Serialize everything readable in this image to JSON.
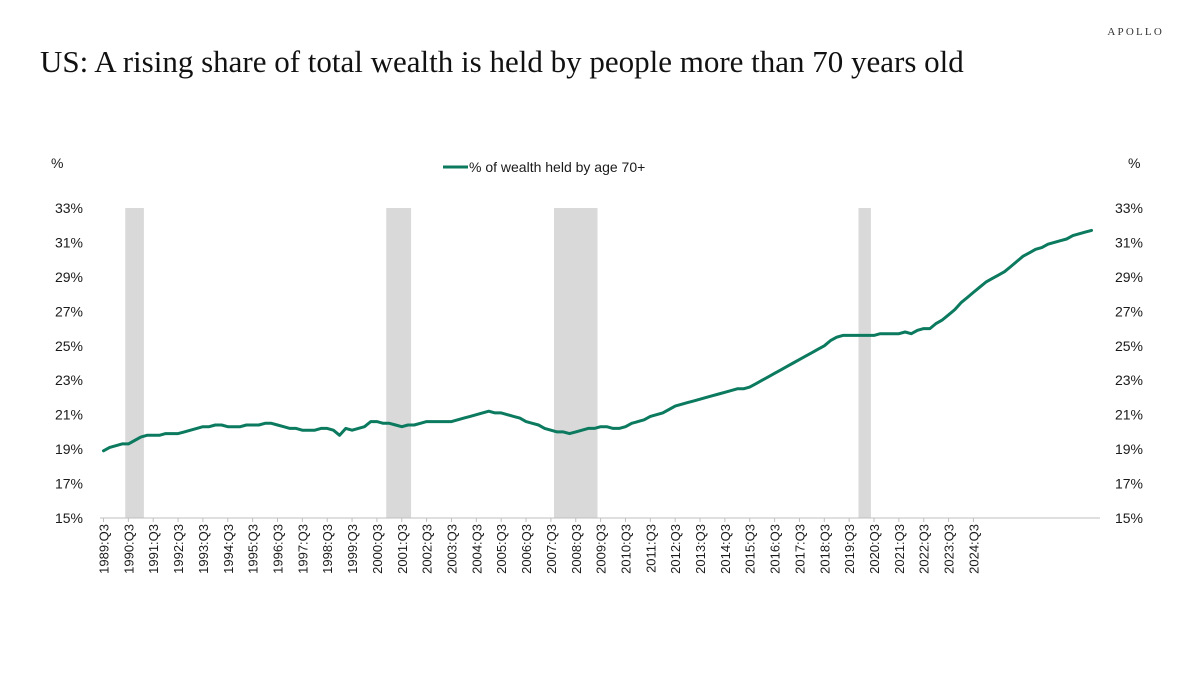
{
  "brand": "APOLLO",
  "title": "US: A rising share of total wealth is held by people more than 70 years old",
  "chart_data": {
    "type": "line",
    "ylabel_left": "%",
    "ylabel_right": "%",
    "ylim": [
      15,
      33
    ],
    "y_ticks": [
      "15%",
      "17%",
      "19%",
      "21%",
      "23%",
      "25%",
      "27%",
      "29%",
      "31%",
      "33%"
    ],
    "y_tick_values": [
      15,
      17,
      19,
      21,
      23,
      25,
      27,
      29,
      31,
      33
    ],
    "x_tick_labels": [
      "1989:Q3",
      "1990:Q3",
      "1991:Q3",
      "1992:Q3",
      "1993:Q3",
      "1994:Q3",
      "1995:Q3",
      "1996:Q3",
      "1997:Q3",
      "1998:Q3",
      "1999:Q3",
      "2000:Q3",
      "2001:Q3",
      "2002:Q3",
      "2003:Q3",
      "2004:Q3",
      "2005:Q3",
      "2006:Q3",
      "2007:Q3",
      "2008:Q3",
      "2009:Q3",
      "2010:Q3",
      "2011:Q3",
      "2012:Q3",
      "2013:Q3",
      "2014:Q3",
      "2015:Q3",
      "2016:Q3",
      "2017:Q3",
      "2018:Q3",
      "2019:Q3",
      "2020:Q3",
      "2021:Q3",
      "2022:Q3",
      "2023:Q3",
      "2024:Q3"
    ],
    "recessions": [
      {
        "start": "1990:Q3",
        "end": "1991:Q1"
      },
      {
        "start": "2001:Q1",
        "end": "2001:Q4"
      },
      {
        "start": "2007:Q4",
        "end": "2009:Q2"
      },
      {
        "start": "2020:Q1",
        "end": "2020:Q2"
      }
    ],
    "series": [
      {
        "name": "% of wealth held by age 70+",
        "color": "#0b7a5e",
        "start": "1989:Q3",
        "values": [
          18.9,
          19.1,
          19.2,
          19.3,
          19.3,
          19.5,
          19.7,
          19.8,
          19.8,
          19.8,
          19.9,
          19.9,
          19.9,
          20.0,
          20.1,
          20.2,
          20.3,
          20.3,
          20.4,
          20.4,
          20.3,
          20.3,
          20.3,
          20.4,
          20.4,
          20.4,
          20.5,
          20.5,
          20.4,
          20.3,
          20.2,
          20.2,
          20.1,
          20.1,
          20.1,
          20.2,
          20.2,
          20.1,
          19.8,
          20.2,
          20.1,
          20.2,
          20.3,
          20.6,
          20.6,
          20.5,
          20.5,
          20.4,
          20.3,
          20.4,
          20.4,
          20.5,
          20.6,
          20.6,
          20.6,
          20.6,
          20.6,
          20.7,
          20.8,
          20.9,
          21.0,
          21.1,
          21.2,
          21.1,
          21.1,
          21.0,
          20.9,
          20.8,
          20.6,
          20.5,
          20.4,
          20.2,
          20.1,
          20.0,
          20.0,
          19.9,
          20.0,
          20.1,
          20.2,
          20.2,
          20.3,
          20.3,
          20.2,
          20.2,
          20.3,
          20.5,
          20.6,
          20.7,
          20.9,
          21.0,
          21.1,
          21.3,
          21.5,
          21.6,
          21.7,
          21.8,
          21.9,
          22.0,
          22.1,
          22.2,
          22.3,
          22.4,
          22.5,
          22.5,
          22.6,
          22.8,
          23.0,
          23.2,
          23.4,
          23.6,
          23.8,
          24.0,
          24.2,
          24.4,
          24.6,
          24.8,
          25.0,
          25.3,
          25.5,
          25.6,
          25.6,
          25.6,
          25.6,
          25.6,
          25.6,
          25.7,
          25.7,
          25.7,
          25.7,
          25.8,
          25.7,
          25.9,
          26.0,
          26.0,
          26.3,
          26.5,
          26.8,
          27.1,
          27.5,
          27.8,
          28.1,
          28.4,
          28.7,
          28.9,
          29.1,
          29.3,
          29.6,
          29.9,
          30.2,
          30.4,
          30.6,
          30.7,
          30.9,
          31.0,
          31.1,
          31.2,
          31.4,
          31.5,
          31.6,
          31.7
        ]
      }
    ]
  }
}
